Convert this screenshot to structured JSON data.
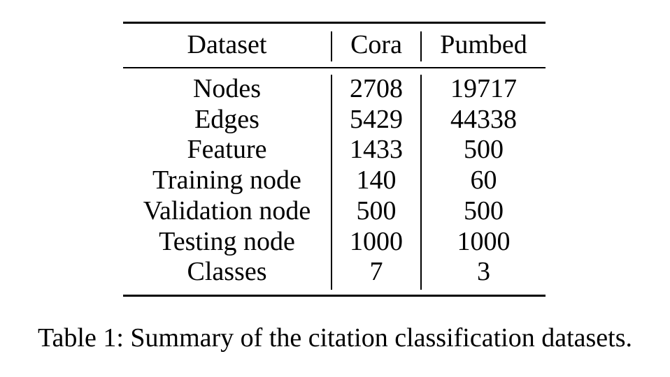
{
  "table": {
    "headers": [
      "Dataset",
      "Cora",
      "Pumbed"
    ],
    "rows": [
      [
        "Nodes",
        "2708",
        "19717"
      ],
      [
        "Edges",
        "5429",
        "44338"
      ],
      [
        "Feature",
        "1433",
        "500"
      ],
      [
        "Training node",
        "140",
        "60"
      ],
      [
        "Validation node",
        "500",
        "500"
      ],
      [
        "Testing node",
        "1000",
        "1000"
      ],
      [
        "Classes",
        "7",
        "3"
      ]
    ]
  },
  "caption": "Table 1: Summary of the citation classification datasets."
}
